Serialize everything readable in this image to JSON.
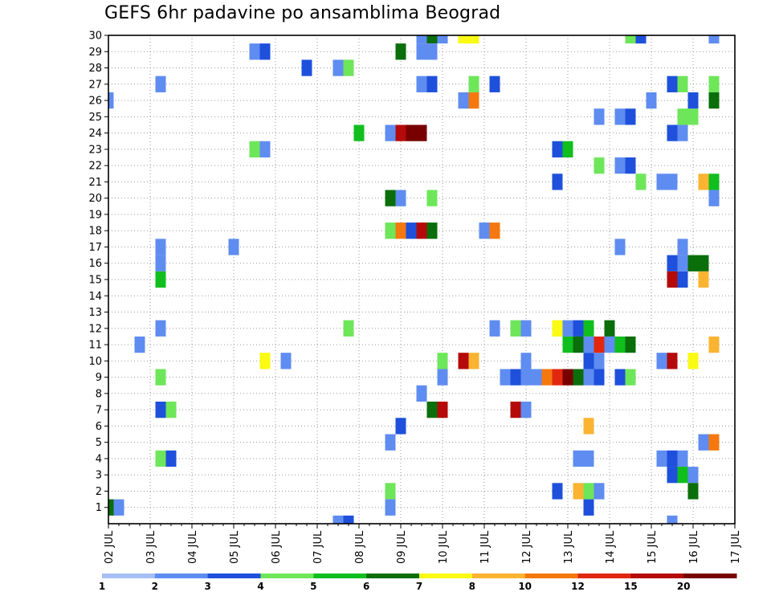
{
  "title": "GEFS 6hr padavine po ansamblima Beograd",
  "chart_data": {
    "type": "heatmap",
    "title": "GEFS 6hr padavine po ansamblima Beograd",
    "x_axis": {
      "type": "date",
      "range": [
        "02 JUL",
        "17 JUL"
      ],
      "step_hours": 6,
      "tick_labels": [
        "02 JUL",
        "03 JUL",
        "04 JUL",
        "05 JUL",
        "06 JUL",
        "07 JUL",
        "08 JUL",
        "09 JUL",
        "10 JUL",
        "11 JUL",
        "12 JUL",
        "13 JUL",
        "14 JUL",
        "15 JUL",
        "16 JUL",
        "17 JUL"
      ]
    },
    "y_axis": {
      "label": "",
      "ylim": [
        0,
        30
      ],
      "tick_labels": [
        "1",
        "2",
        "3",
        "4",
        "5",
        "6",
        "7",
        "8",
        "9",
        "10",
        "11",
        "12",
        "13",
        "14",
        "15",
        "16",
        "17",
        "18",
        "19",
        "20",
        "21",
        "22",
        "23",
        "24",
        "25",
        "26",
        "27",
        "28",
        "29",
        "30"
      ]
    },
    "grid": true,
    "legend": {
      "placement": "bottom",
      "thresholds": [
        "1",
        "2",
        "3",
        "4",
        "5",
        "6",
        "7",
        "8",
        "10",
        "12",
        "15",
        "20"
      ],
      "colors": [
        "#a7bff5",
        "#5f8cf0",
        "#1e50dc",
        "#6ee65a",
        "#10be1e",
        "#0a6e0a",
        "#fafa14",
        "#fab432",
        "#f5780f",
        "#e1280f",
        "#b40a0a",
        "#780000"
      ]
    },
    "cells": [
      {
        "x": "02 JUL 00Z",
        "member": 1,
        "bin": 5
      },
      {
        "x": "02 JUL 06Z",
        "member": 1,
        "bin": 1
      },
      {
        "x": "02 JUL 00Z",
        "member": 26,
        "bin": 1
      },
      {
        "x": "02 JUL 18Z",
        "member": 11,
        "bin": 1
      },
      {
        "x": "03 JUL 06Z",
        "member": 27,
        "bin": 1
      },
      {
        "x": "03 JUL 06Z",
        "member": 17,
        "bin": 1
      },
      {
        "x": "03 JUL 06Z",
        "member": 16,
        "bin": 1
      },
      {
        "x": "03 JUL 06Z",
        "member": 15,
        "bin": 4
      },
      {
        "x": "03 JUL 06Z",
        "member": 12,
        "bin": 1
      },
      {
        "x": "03 JUL 06Z",
        "member": 9,
        "bin": 3
      },
      {
        "x": "03 JUL 06Z",
        "member": 7,
        "bin": 2
      },
      {
        "x": "03 JUL 12Z",
        "member": 7,
        "bin": 3
      },
      {
        "x": "03 JUL 06Z",
        "member": 4,
        "bin": 3
      },
      {
        "x": "03 JUL 12Z",
        "member": 4,
        "bin": 2
      },
      {
        "x": "05 JUL 00Z",
        "member": 17,
        "bin": 1
      },
      {
        "x": "05 JUL 12Z",
        "member": 29,
        "bin": 1
      },
      {
        "x": "05 JUL 18Z",
        "member": 29,
        "bin": 2
      },
      {
        "x": "05 JUL 12Z",
        "member": 23,
        "bin": 3
      },
      {
        "x": "05 JUL 18Z",
        "member": 23,
        "bin": 1
      },
      {
        "x": "05 JUL 18Z",
        "member": 10,
        "bin": 6
      },
      {
        "x": "06 JUL 06Z",
        "member": 10,
        "bin": 1
      },
      {
        "x": "06 JUL 18Z",
        "member": 28,
        "bin": 2
      },
      {
        "x": "07 JUL 12Z",
        "member": 28,
        "bin": 1
      },
      {
        "x": "07 JUL 18Z",
        "member": 28,
        "bin": 3
      },
      {
        "x": "07 JUL 18Z",
        "member": 12,
        "bin": 3
      },
      {
        "x": "07 JUL 12Z",
        "member": 0,
        "bin": 1
      },
      {
        "x": "07 JUL 18Z",
        "member": 0,
        "bin": 2
      },
      {
        "x": "08 JUL 00Z",
        "member": 24,
        "bin": 4
      },
      {
        "x": "08 JUL 18Z",
        "member": 24,
        "bin": 1
      },
      {
        "x": "09 JUL 00Z",
        "member": 24,
        "bin": 10
      },
      {
        "x": "09 JUL 06Z",
        "member": 24,
        "bin": 11
      },
      {
        "x": "09 JUL 12Z",
        "member": 24,
        "bin": 11
      },
      {
        "x": "09 JUL 00Z",
        "member": 29,
        "bin": 5
      },
      {
        "x": "09 JUL 12Z",
        "member": 30,
        "bin": 1
      },
      {
        "x": "09 JUL 18Z",
        "member": 30,
        "bin": 5
      },
      {
        "x": "10 JUL 00Z",
        "member": 30,
        "bin": 1
      },
      {
        "x": "09 JUL 12Z",
        "member": 29,
        "bin": 1
      },
      {
        "x": "09 JUL 18Z",
        "member": 29,
        "bin": 1
      },
      {
        "x": "09 JUL 12Z",
        "member": 27,
        "bin": 1
      },
      {
        "x": "09 JUL 18Z",
        "member": 27,
        "bin": 2
      },
      {
        "x": "08 JUL 18Z",
        "member": 20,
        "bin": 5
      },
      {
        "x": "09 JUL 00Z",
        "member": 20,
        "bin": 1
      },
      {
        "x": "09 JUL 18Z",
        "member": 20,
        "bin": 3
      },
      {
        "x": "08 JUL 18Z",
        "member": 18,
        "bin": 3
      },
      {
        "x": "09 JUL 00Z",
        "member": 18,
        "bin": 8
      },
      {
        "x": "09 JUL 06Z",
        "member": 18,
        "bin": 2
      },
      {
        "x": "09 JUL 12Z",
        "member": 18,
        "bin": 10
      },
      {
        "x": "09 JUL 18Z",
        "member": 18,
        "bin": 5
      },
      {
        "x": "09 JUL 12Z",
        "member": 8,
        "bin": 1
      },
      {
        "x": "09 JUL 18Z",
        "member": 7,
        "bin": 5
      },
      {
        "x": "10 JUL 00Z",
        "member": 7,
        "bin": 10
      },
      {
        "x": "09 JUL 00Z",
        "member": 6,
        "bin": 2
      },
      {
        "x": "08 JUL 18Z",
        "member": 5,
        "bin": 1
      },
      {
        "x": "08 JUL 18Z",
        "member": 2,
        "bin": 3
      },
      {
        "x": "08 JUL 18Z",
        "member": 1,
        "bin": 1
      },
      {
        "x": "10 JUL 00Z",
        "member": 10,
        "bin": 3
      },
      {
        "x": "10 JUL 00Z",
        "member": 9,
        "bin": 1
      },
      {
        "x": "10 JUL 12Z",
        "member": 10,
        "bin": 10
      },
      {
        "x": "10 JUL 18Z",
        "member": 10,
        "bin": 7
      },
      {
        "x": "10 JUL 12Z",
        "member": 30,
        "bin": 6
      },
      {
        "x": "10 JUL 18Z",
        "member": 30,
        "bin": 6
      },
      {
        "x": "10 JUL 12Z",
        "member": 26,
        "bin": 1
      },
      {
        "x": "10 JUL 18Z",
        "member": 26,
        "bin": 8
      },
      {
        "x": "10 JUL 18Z",
        "member": 27,
        "bin": 3
      },
      {
        "x": "11 JUL 00Z",
        "member": 18,
        "bin": 1
      },
      {
        "x": "11 JUL 06Z",
        "member": 18,
        "bin": 8
      },
      {
        "x": "11 JUL 06Z",
        "member": 27,
        "bin": 2
      },
      {
        "x": "11 JUL 06Z",
        "member": 12,
        "bin": 1
      },
      {
        "x": "11 JUL 12Z",
        "member": 9,
        "bin": 1
      },
      {
        "x": "11 JUL 18Z",
        "member": 9,
        "bin": 2
      },
      {
        "x": "11 JUL 18Z",
        "member": 12,
        "bin": 3
      },
      {
        "x": "12 JUL 00Z",
        "member": 12,
        "bin": 1
      },
      {
        "x": "11 JUL 18Z",
        "member": 7,
        "bin": 10
      },
      {
        "x": "12 JUL 00Z",
        "member": 7,
        "bin": 1
      },
      {
        "x": "12 JUL 00Z",
        "member": 10,
        "bin": 1
      },
      {
        "x": "12 JUL 00Z",
        "member": 9,
        "bin": 1
      },
      {
        "x": "12 JUL 06Z",
        "member": 9,
        "bin": 1
      },
      {
        "x": "12 JUL 12Z",
        "member": 9,
        "bin": 8
      },
      {
        "x": "12 JUL 18Z",
        "member": 9,
        "bin": 9
      },
      {
        "x": "13 JUL 00Z",
        "member": 9,
        "bin": 11
      },
      {
        "x": "13 JUL 06Z",
        "member": 9,
        "bin": 5
      },
      {
        "x": "12 JUL 18Z",
        "member": 23,
        "bin": 2
      },
      {
        "x": "13 JUL 00Z",
        "member": 23,
        "bin": 4
      },
      {
        "x": "12 JUL 18Z",
        "member": 21,
        "bin": 2
      },
      {
        "x": "12 JUL 18Z",
        "member": 12,
        "bin": 6
      },
      {
        "x": "13 JUL 00Z",
        "member": 12,
        "bin": 1
      },
      {
        "x": "13 JUL 06Z",
        "member": 12,
        "bin": 2
      },
      {
        "x": "13 JUL 00Z",
        "member": 11,
        "bin": 4
      },
      {
        "x": "13 JUL 06Z",
        "member": 11,
        "bin": 5
      },
      {
        "x": "12 JUL 18Z",
        "member": 2,
        "bin": 2
      },
      {
        "x": "13 JUL 12Z",
        "member": 12,
        "bin": 4
      },
      {
        "x": "13 JUL 12Z",
        "member": 11,
        "bin": 1
      },
      {
        "x": "13 JUL 12Z",
        "member": 10,
        "bin": 2
      },
      {
        "x": "13 JUL 12Z",
        "member": 9,
        "bin": 1
      },
      {
        "x": "13 JUL 18Z",
        "member": 10,
        "bin": 1
      },
      {
        "x": "13 JUL 18Z",
        "member": 9,
        "bin": 2
      },
      {
        "x": "13 JUL 18Z",
        "member": 11,
        "bin": 9
      },
      {
        "x": "13 JUL 12Z",
        "member": 6,
        "bin": 7
      },
      {
        "x": "13 JUL 06Z",
        "member": 4,
        "bin": 1
      },
      {
        "x": "13 JUL 12Z",
        "member": 4,
        "bin": 1
      },
      {
        "x": "13 JUL 06Z",
        "member": 2,
        "bin": 7
      },
      {
        "x": "13 JUL 12Z",
        "member": 2,
        "bin": 3
      },
      {
        "x": "13 JUL 18Z",
        "member": 2,
        "bin": 1
      },
      {
        "x": "13 JUL 12Z",
        "member": 1,
        "bin": 2
      },
      {
        "x": "13 JUL 18Z",
        "member": 25,
        "bin": 1
      },
      {
        "x": "13 JUL 18Z",
        "member": 22,
        "bin": 3
      },
      {
        "x": "14 JUL 00Z",
        "member": 12,
        "bin": 5
      },
      {
        "x": "14 JUL 00Z",
        "member": 11,
        "bin": 1
      },
      {
        "x": "14 JUL 06Z",
        "member": 25,
        "bin": 1
      },
      {
        "x": "14 JUL 12Z",
        "member": 25,
        "bin": 2
      },
      {
        "x": "14 JUL 06Z",
        "member": 22,
        "bin": 1
      },
      {
        "x": "14 JUL 12Z",
        "member": 22,
        "bin": 2
      },
      {
        "x": "14 JUL 06Z",
        "member": 17,
        "bin": 1
      },
      {
        "x": "14 JUL 06Z",
        "member": 11,
        "bin": 4
      },
      {
        "x": "14 JUL 12Z",
        "member": 11,
        "bin": 5
      },
      {
        "x": "14 JUL 06Z",
        "member": 9,
        "bin": 2
      },
      {
        "x": "14 JUL 12Z",
        "member": 9,
        "bin": 3
      },
      {
        "x": "14 JUL 12Z",
        "member": 30,
        "bin": 3
      },
      {
        "x": "14 JUL 18Z",
        "member": 30,
        "bin": 2
      },
      {
        "x": "14 JUL 18Z",
        "member": 21,
        "bin": 3
      },
      {
        "x": "15 JUL 00Z",
        "member": 26,
        "bin": 1
      },
      {
        "x": "15 JUL 06Z",
        "member": 21,
        "bin": 1
      },
      {
        "x": "15 JUL 12Z",
        "member": 21,
        "bin": 1
      },
      {
        "x": "15 JUL 06Z",
        "member": 10,
        "bin": 1
      },
      {
        "x": "15 JUL 12Z",
        "member": 10,
        "bin": 10
      },
      {
        "x": "15 JUL 06Z",
        "member": 4,
        "bin": 1
      },
      {
        "x": "15 JUL 12Z",
        "member": 4,
        "bin": 2
      },
      {
        "x": "15 JUL 12Z",
        "member": 3,
        "bin": 2
      },
      {
        "x": "15 JUL 12Z",
        "member": 16,
        "bin": 2
      },
      {
        "x": "15 JUL 12Z",
        "member": 15,
        "bin": 10
      },
      {
        "x": "15 JUL 18Z",
        "member": 15,
        "bin": 2
      },
      {
        "x": "15 JUL 18Z",
        "member": 17,
        "bin": 1
      },
      {
        "x": "15 JUL 18Z",
        "member": 16,
        "bin": 1
      },
      {
        "x": "15 JUL 18Z",
        "member": 27,
        "bin": 3
      },
      {
        "x": "15 JUL 12Z",
        "member": 27,
        "bin": 2
      },
      {
        "x": "15 JUL 12Z",
        "member": 24,
        "bin": 2
      },
      {
        "x": "15 JUL 18Z",
        "member": 24,
        "bin": 1
      },
      {
        "x": "15 JUL 18Z",
        "member": 25,
        "bin": 3
      },
      {
        "x": "16 JUL 00Z",
        "member": 25,
        "bin": 3
      },
      {
        "x": "16 JUL 00Z",
        "member": 26,
        "bin": 2
      },
      {
        "x": "15 JUL 12Z",
        "member": 0,
        "bin": 1
      },
      {
        "x": "15 JUL 18Z",
        "member": 4,
        "bin": 1
      },
      {
        "x": "15 JUL 18Z",
        "member": 3,
        "bin": 4
      },
      {
        "x": "16 JUL 00Z",
        "member": 3,
        "bin": 1
      },
      {
        "x": "16 JUL 00Z",
        "member": 2,
        "bin": 5
      },
      {
        "x": "16 JUL 00Z",
        "member": 16,
        "bin": 5
      },
      {
        "x": "16 JUL 06Z",
        "member": 16,
        "bin": 5
      },
      {
        "x": "16 JUL 06Z",
        "member": 15,
        "bin": 7
      },
      {
        "x": "16 JUL 00Z",
        "member": 10,
        "bin": 6
      },
      {
        "x": "16 JUL 06Z",
        "member": 21,
        "bin": 7
      },
      {
        "x": "16 JUL 12Z",
        "member": 21,
        "bin": 4
      },
      {
        "x": "16 JUL 06Z",
        "member": 5,
        "bin": 1
      },
      {
        "x": "16 JUL 12Z",
        "member": 5,
        "bin": 8
      },
      {
        "x": "16 JUL 12Z",
        "member": 30,
        "bin": 1
      },
      {
        "x": "16 JUL 12Z",
        "member": 20,
        "bin": 1
      },
      {
        "x": "16 JUL 12Z",
        "member": 27,
        "bin": 3
      },
      {
        "x": "16 JUL 12Z",
        "member": 26,
        "bin": 5
      },
      {
        "x": "16 JUL 12Z",
        "member": 11,
        "bin": 7
      }
    ]
  }
}
